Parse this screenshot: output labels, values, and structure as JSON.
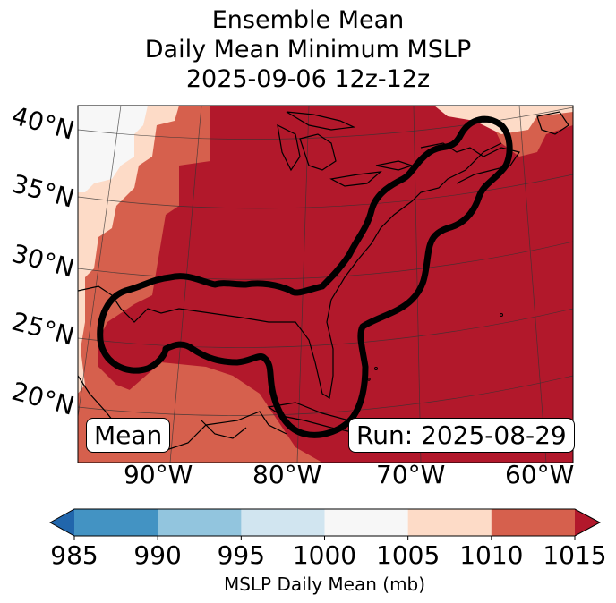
{
  "title": {
    "line1": "Ensemble Mean",
    "line2": "Daily Mean Minimum MSLP",
    "line3": "2025-09-06 12z-12z"
  },
  "map": {
    "lat_labels": [
      "40°N",
      "35°N",
      "30°N",
      "25°N",
      "20°N"
    ],
    "lon_labels": [
      "90°W",
      "80°W",
      "70°W",
      "60°W"
    ],
    "mean_label": "Mean",
    "run_label": "Run: 2025-08-29",
    "field_colors": {
      "below_1005": "#f7f7f7",
      "1005_1010": "#fddbc7",
      "1010_1015": "#d6604d",
      "above_1015": "#b2182b",
      "contour": "#000000"
    }
  },
  "colorbar": {
    "ticks": [
      "985",
      "990",
      "995",
      "1000",
      "1005",
      "1010",
      "1015"
    ],
    "colors": [
      "#2166ac",
      "#4393c3",
      "#92c5de",
      "#d1e5f0",
      "#f7f7f7",
      "#fddbc7",
      "#d6604d",
      "#b2182b"
    ],
    "label": "MSLP Daily Mean (mb)"
  }
}
